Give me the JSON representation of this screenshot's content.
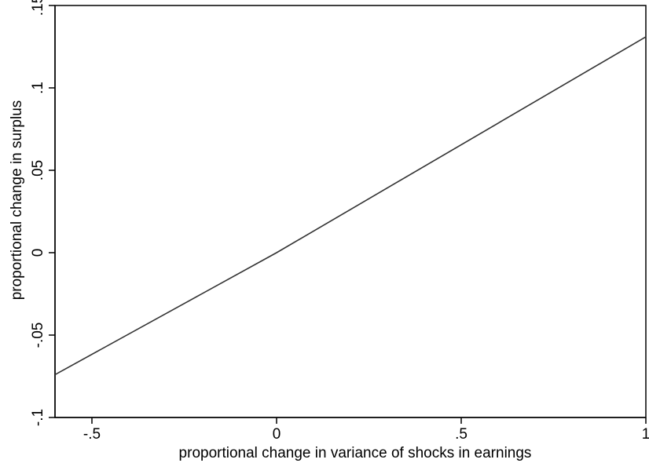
{
  "chart_data": {
    "type": "line",
    "title": "",
    "xlabel": "proportional change in variance of shocks in earnings",
    "ylabel": "proportional change in surplus",
    "xlim": [
      -0.6,
      1.0
    ],
    "ylim": [
      -0.1,
      0.15
    ],
    "x_ticks": [
      -0.5,
      0,
      0.5,
      1
    ],
    "x_tick_labels": [
      "-.5",
      "0",
      ".5",
      "1"
    ],
    "y_ticks": [
      -0.1,
      -0.05,
      0,
      0.05,
      0.1,
      0.15
    ],
    "y_tick_labels": [
      "-.1",
      "-.05",
      "0",
      ".05",
      ".1",
      ".15"
    ],
    "grid": false,
    "legend": "none",
    "line_color": "#333333",
    "series": [
      {
        "x": [
          -0.6,
          0,
          1.0
        ],
        "y": [
          -0.074,
          0.0,
          0.131
        ]
      }
    ]
  }
}
